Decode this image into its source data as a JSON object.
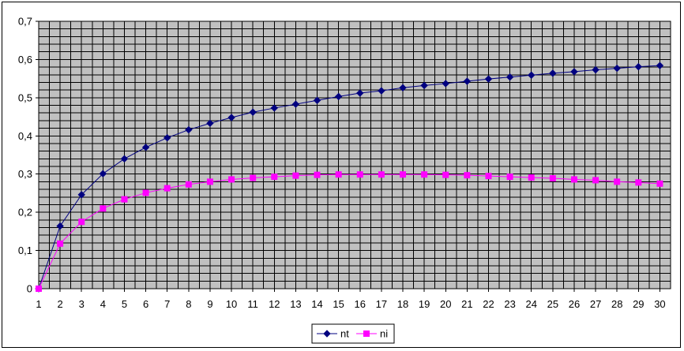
{
  "chart_data": {
    "type": "line",
    "title": "",
    "xlabel": "",
    "ylabel": "",
    "x": [
      1,
      2,
      3,
      4,
      5,
      6,
      7,
      8,
      9,
      10,
      11,
      12,
      13,
      14,
      15,
      16,
      17,
      18,
      19,
      20,
      21,
      22,
      23,
      24,
      25,
      26,
      27,
      28,
      29,
      30
    ],
    "x_tick_labels": [
      "1",
      "2",
      "3",
      "4",
      "5",
      "6",
      "7",
      "8",
      "9",
      "10",
      "11",
      "12",
      "13",
      "14",
      "15",
      "16",
      "17",
      "18",
      "19",
      "20",
      "21",
      "22",
      "23",
      "24",
      "25",
      "26",
      "27",
      "28",
      "29",
      "30"
    ],
    "ylim": [
      0,
      0.7
    ],
    "y_ticks": [
      0,
      0.1,
      0.2,
      0.3,
      0.4,
      0.5,
      0.6,
      0.7
    ],
    "y_tick_labels": [
      "0",
      "0,1",
      "0,2",
      "0,3",
      "0,4",
      "0,5",
      "0,6",
      "0,7"
    ],
    "grid": true,
    "plot_background": "#c0c0c0",
    "legend_position": "bottom-center",
    "series": [
      {
        "name": "nt",
        "color": "#000080",
        "marker": "diamond",
        "values": [
          0,
          0.164,
          0.246,
          0.301,
          0.34,
          0.37,
          0.395,
          0.416,
          0.433,
          0.448,
          0.462,
          0.473,
          0.483,
          0.493,
          0.503,
          0.512,
          0.518,
          0.526,
          0.532,
          0.537,
          0.543,
          0.549,
          0.554,
          0.559,
          0.564,
          0.568,
          0.573,
          0.577,
          0.581,
          0.584
        ]
      },
      {
        "name": "ni",
        "color": "#ff00ff",
        "marker": "square",
        "values": [
          0,
          0.118,
          0.175,
          0.21,
          0.234,
          0.251,
          0.263,
          0.273,
          0.28,
          0.286,
          0.29,
          0.293,
          0.296,
          0.298,
          0.299,
          0.299,
          0.299,
          0.299,
          0.299,
          0.298,
          0.297,
          0.295,
          0.293,
          0.291,
          0.289,
          0.286,
          0.284,
          0.28,
          0.278,
          0.275
        ]
      }
    ]
  }
}
